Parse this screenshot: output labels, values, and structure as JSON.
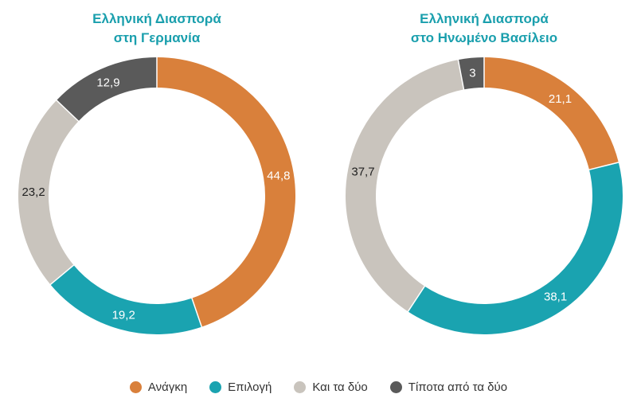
{
  "chart_data": [
    {
      "type": "pie",
      "title_lines": [
        "Ελληνική Διασπορά",
        "στη Γερμανία"
      ],
      "categories": [
        "Ανάγκη",
        "Επιλογή",
        "Και τα δύο",
        "Τίποτα από τα δύο"
      ],
      "values": [
        44.8,
        19.2,
        23.2,
        12.9
      ],
      "labels": [
        "44,8",
        "19,2",
        "23,2",
        "12,9"
      ],
      "colors": [
        "#d9803b",
        "#1aa3b0",
        "#c9c4bd",
        "#5a5a5a"
      ],
      "label_colors": [
        "#ffffff",
        "#ffffff",
        "#222222",
        "#ffffff"
      ],
      "donut": true
    },
    {
      "type": "pie",
      "title_lines": [
        "Ελληνική Διασπορά",
        "στο Ηνωμένο Βασίλειο"
      ],
      "categories": [
        "Ανάγκη",
        "Επιλογή",
        "Και τα δύο",
        "Τίποτα από τα δύο"
      ],
      "values": [
        21.1,
        38.1,
        37.7,
        3
      ],
      "labels": [
        "21,1",
        "38,1",
        "37,7",
        "3"
      ],
      "colors": [
        "#d9803b",
        "#1aa3b0",
        "#c9c4bd",
        "#5a5a5a"
      ],
      "label_colors": [
        "#ffffff",
        "#ffffff",
        "#222222",
        "#ffffff"
      ],
      "donut": true
    }
  ],
  "legend": [
    {
      "label": "Ανάγκη",
      "color": "#d9803b"
    },
    {
      "label": "Επιλογή",
      "color": "#1aa3b0"
    },
    {
      "label": "Και τα δύο",
      "color": "#c9c4bd"
    },
    {
      "label": "Τίποτα από τα δύο",
      "color": "#5a5a5a"
    }
  ]
}
